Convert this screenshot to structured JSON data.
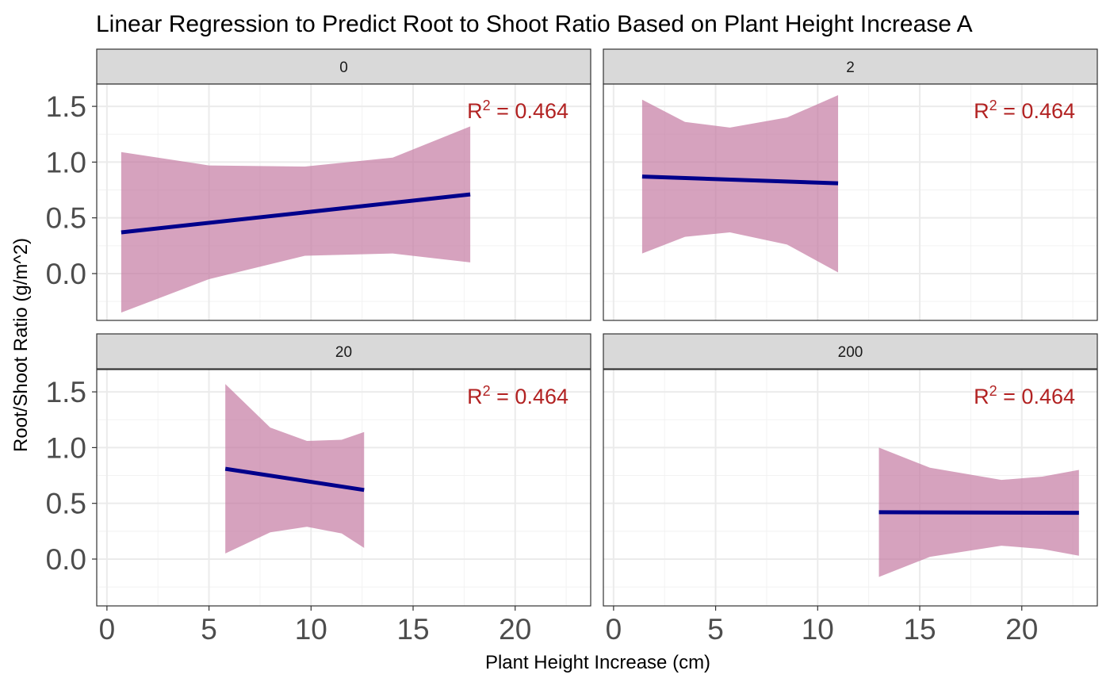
{
  "chart_data": {
    "type": "line",
    "title": "Linear Regression to Predict Root to Shoot Ratio Based on Plant Height Increase A",
    "xlabel": "Plant Height Increase (cm)",
    "ylabel": "Root/Shoot Ratio (g/m^2)",
    "xlim": [
      -0.5,
      23.7
    ],
    "ylim": [
      -0.42,
      1.7
    ],
    "x_ticks": [
      0,
      5,
      10,
      15,
      20
    ],
    "x_tick_labels": [
      "0",
      "5",
      "10",
      "15",
      "20"
    ],
    "y_ticks": [
      0.0,
      0.5,
      1.0,
      1.5
    ],
    "y_tick_labels": [
      "0.0",
      "0.5",
      "1.0",
      "1.5"
    ],
    "grid": true,
    "colors": {
      "line": "#00008B",
      "band": "#C57BA3",
      "annotation": "#B22222",
      "strip_fill": "#D9D9D9"
    },
    "panels": [
      {
        "facet": "0",
        "annotation": {
          "prefix": "R",
          "sup": "2",
          "suffix": " = 0.464"
        },
        "line": {
          "x": [
            0.7,
            17.8
          ],
          "y": [
            0.37,
            0.71
          ]
        },
        "band": {
          "x": [
            0.7,
            5.0,
            9.7,
            14.0,
            17.8
          ],
          "upper": [
            1.09,
            0.97,
            0.96,
            1.04,
            1.32
          ],
          "lower": [
            -0.35,
            -0.05,
            0.16,
            0.18,
            0.1
          ]
        }
      },
      {
        "facet": "2",
        "annotation": {
          "prefix": "R",
          "sup": "2",
          "suffix": " = 0.464"
        },
        "line": {
          "x": [
            1.4,
            11.0
          ],
          "y": [
            0.87,
            0.81
          ]
        },
        "band": {
          "x": [
            1.4,
            3.5,
            5.7,
            8.5,
            11.0
          ],
          "upper": [
            1.56,
            1.36,
            1.31,
            1.4,
            1.6
          ],
          "lower": [
            0.18,
            0.33,
            0.37,
            0.26,
            0.01
          ]
        }
      },
      {
        "facet": "20",
        "annotation": {
          "prefix": "R",
          "sup": "2",
          "suffix": " = 0.464"
        },
        "line": {
          "x": [
            5.8,
            12.6
          ],
          "y": [
            0.81,
            0.62
          ]
        },
        "band": {
          "x": [
            5.8,
            8.0,
            9.8,
            11.5,
            12.6
          ],
          "upper": [
            1.57,
            1.18,
            1.06,
            1.07,
            1.14
          ],
          "lower": [
            0.05,
            0.24,
            0.29,
            0.23,
            0.1
          ]
        }
      },
      {
        "facet": "200",
        "annotation": {
          "prefix": "R",
          "sup": "2",
          "suffix": " = 0.464"
        },
        "line": {
          "x": [
            13.0,
            22.8
          ],
          "y": [
            0.42,
            0.415
          ]
        },
        "band": {
          "x": [
            13.0,
            15.5,
            19.0,
            21.0,
            22.8
          ],
          "upper": [
            1.0,
            0.82,
            0.71,
            0.74,
            0.8
          ],
          "lower": [
            -0.16,
            0.02,
            0.12,
            0.09,
            0.03
          ]
        }
      }
    ]
  }
}
